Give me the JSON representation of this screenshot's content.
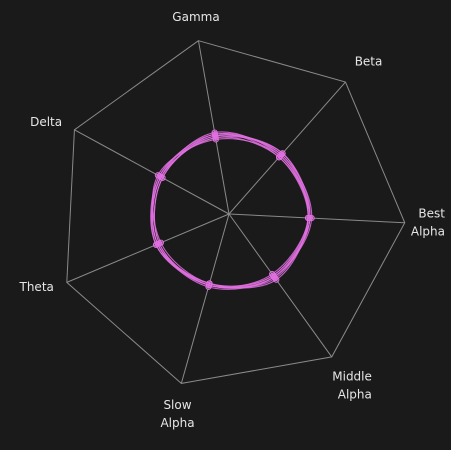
{
  "chart_data": {
    "type": "radar",
    "axes": [
      {
        "label_lines": [
          "Gamma"
        ]
      },
      {
        "label_lines": [
          "Beta"
        ]
      },
      {
        "label_lines": [
          "Best",
          "Alpha"
        ]
      },
      {
        "label_lines": [
          "Middle",
          "Alpha"
        ]
      },
      {
        "label_lines": [
          "Slow",
          "Alpha"
        ]
      },
      {
        "label_lines": [
          "Theta"
        ]
      },
      {
        "label_lines": [
          "Delta"
        ]
      }
    ],
    "range": [
      0,
      1
    ],
    "grid": true,
    "grid_color": "#8a8a8a",
    "label_color": "#e6e6e6",
    "background": "#1a1a1a",
    "series_color": "#e070e0",
    "series": [
      {
        "values": [
          0.44,
          0.43,
          0.46,
          0.44,
          0.42,
          0.44,
          0.44
        ]
      },
      {
        "values": [
          0.46,
          0.45,
          0.45,
          0.42,
          0.42,
          0.43,
          0.43
        ]
      },
      {
        "values": [
          0.45,
          0.46,
          0.46,
          0.43,
          0.41,
          0.45,
          0.45
        ]
      },
      {
        "values": [
          0.43,
          0.44,
          0.45,
          0.45,
          0.41,
          0.42,
          0.46
        ]
      },
      {
        "values": [
          0.47,
          0.44,
          0.46,
          0.44,
          0.43,
          0.44,
          0.44
        ]
      },
      {
        "values": [
          0.45,
          0.45,
          0.47,
          0.44,
          0.42,
          0.43,
          0.43
        ]
      },
      {
        "values": [
          0.44,
          0.46,
          0.45,
          0.43,
          0.42,
          0.45,
          0.44
        ]
      },
      {
        "values": [
          0.46,
          0.43,
          0.45,
          0.46,
          0.41,
          0.44,
          0.45
        ]
      }
    ]
  }
}
